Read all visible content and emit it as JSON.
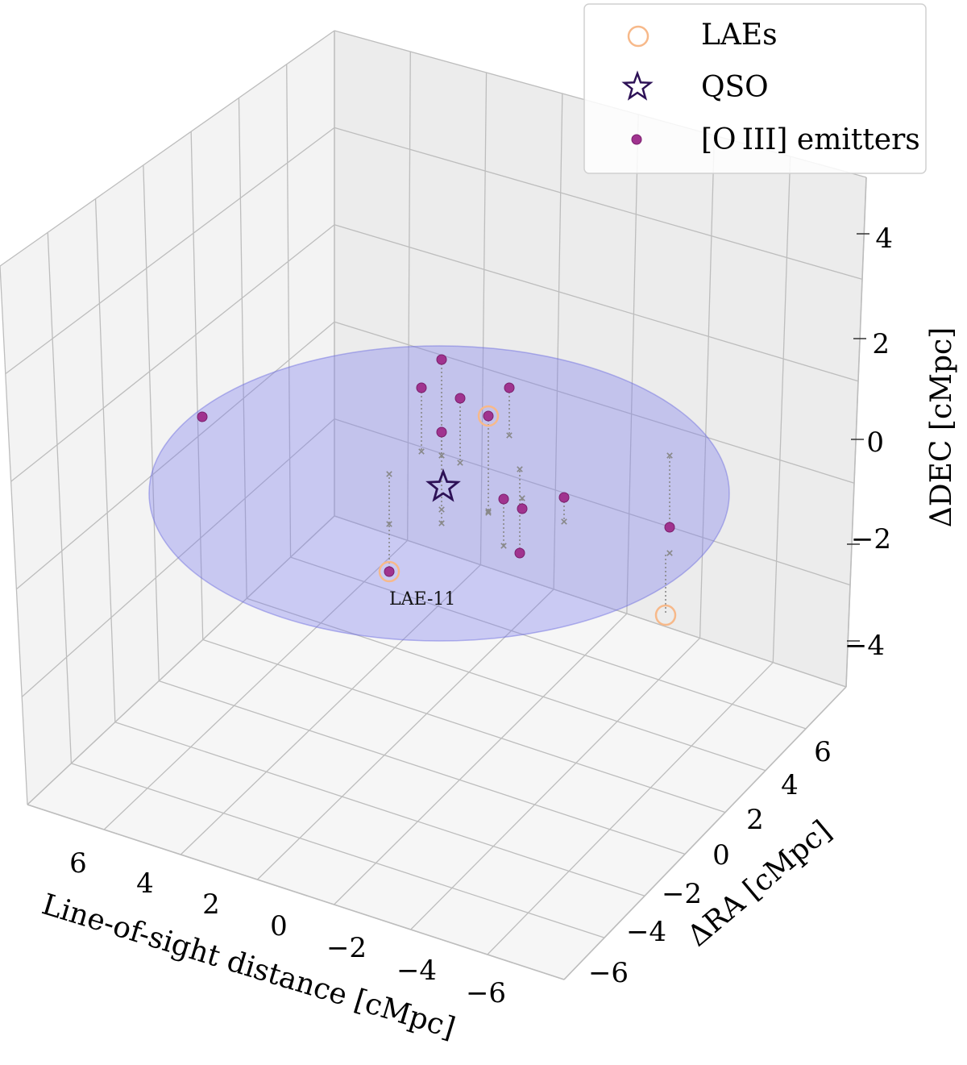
{
  "chart_data": {
    "type": "scatter3d",
    "xlabel": "Line-of-sight distance [cMpc]",
    "ylabel": "ΔRA [cMpc]",
    "zlabel": "ΔDEC [cMpc]",
    "x_ticks": [
      "6",
      "4",
      "2",
      "0",
      "−2",
      "−4",
      "−6"
    ],
    "y_ticks": [
      "−6",
      "−4",
      "−2",
      "0",
      "2",
      "4",
      "6"
    ],
    "z_ticks": [
      "−4",
      "−2",
      "0",
      "2",
      "4"
    ],
    "legend": [
      {
        "label": "LAEs",
        "marker": "open-circle",
        "color": "#f7b98a"
      },
      {
        "label": "QSO",
        "marker": "open-star",
        "color": "#2d1156"
      },
      {
        "label": "[O III] emitters",
        "marker": "filled-circle",
        "color": "#a0338f"
      }
    ],
    "annotations": [
      {
        "text": "LAE-11"
      }
    ],
    "region": {
      "shape": "disc",
      "color": "#7777ee"
    },
    "colors": {
      "pane_back": "#ececec",
      "pane_left": "#f3f3f3",
      "pane_floor": "#f6f6f6",
      "grid": "#bdbdbd",
      "emitter": "#a0338f",
      "emitter_edge": "#7a1f6c",
      "lae": "#f7b98a",
      "qso": "#2d1156",
      "projection": "#888888"
    }
  }
}
